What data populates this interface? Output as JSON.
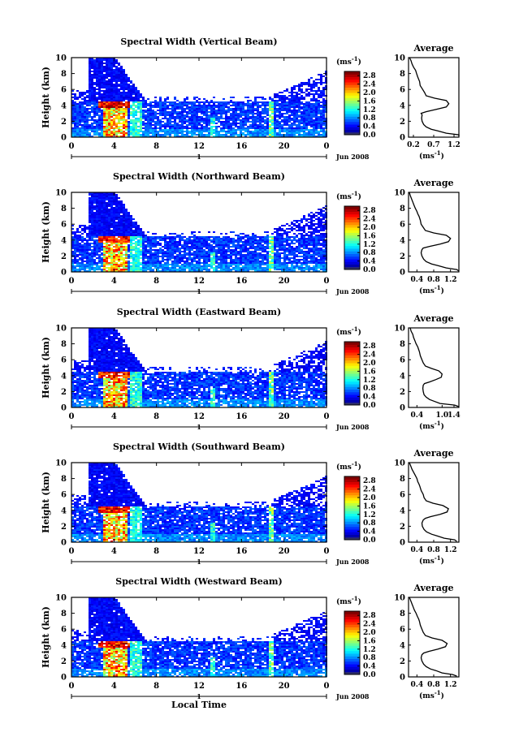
{
  "figure": {
    "common": {
      "ylabel": "Height (km)",
      "xlabel": "Local Time",
      "date_label": "Jun 2008",
      "day_label": "1",
      "unit_label": "(ms",
      "unit_exp": "-1",
      "unit_close": ")",
      "avg_title": "Average"
    }
  },
  "chart_data": [
    {
      "type": "heatmap",
      "title": "Spectral Width (Vertical Beam)",
      "ylabel": "Height (km)",
      "xticks": [
        "0",
        "4",
        "8",
        "12",
        "16",
        "20",
        "0"
      ],
      "yticks": [
        "0",
        "2",
        "4",
        "6",
        "8",
        "10"
      ],
      "xlim": [
        0,
        24
      ],
      "ylim": [
        0,
        10
      ],
      "colorbar": {
        "ticks": [
          "0.0",
          "0.4",
          "0.8",
          "1.2",
          "1.6",
          "2.0",
          "2.4",
          "2.8"
        ],
        "range": [
          0,
          3.0
        ]
      },
      "average": {
        "title": "Average",
        "xticks": [
          "0.2",
          "0.7",
          "1.2"
        ],
        "xlim": [
          0.2,
          1.2
        ],
        "x": [
          1.25,
          1.2,
          0.95,
          0.78,
          0.65,
          0.55,
          0.5,
          0.47,
          0.46,
          0.47,
          0.45,
          0.55,
          0.75,
          0.95,
          1.0,
          0.95,
          0.72,
          0.55,
          0.52,
          0.48,
          0.43,
          0.42,
          0.4,
          0.38,
          0.36,
          0.34,
          0.3,
          0.27,
          0.25,
          0.22
        ],
        "y": [
          0.1,
          0.3,
          0.5,
          0.8,
          1.0,
          1.3,
          1.6,
          2.0,
          2.4,
          2.8,
          3.0,
          3.2,
          3.5,
          3.8,
          4.2,
          4.6,
          4.9,
          5.2,
          5.6,
          6.0,
          6.5,
          7.0,
          7.3,
          7.6,
          8.0,
          8.4,
          8.8,
          9.2,
          9.6,
          10.0
        ]
      }
    },
    {
      "type": "heatmap",
      "title": "Spectral Width (Northward Beam)",
      "ylabel": "Height (km)",
      "xticks": [
        "0",
        "4",
        "8",
        "12",
        "16",
        "20",
        "0"
      ],
      "yticks": [
        "0",
        "2",
        "4",
        "6",
        "8",
        "10"
      ],
      "xlim": [
        0,
        24
      ],
      "ylim": [
        0,
        10
      ],
      "colorbar": {
        "ticks": [
          "0.0",
          "0.4",
          "0.8",
          "1.2",
          "1.6",
          "2.0",
          "2.4",
          "2.8"
        ],
        "range": [
          0,
          3.0
        ]
      },
      "average": {
        "title": "Average",
        "xticks": [
          "0.4",
          "0.8",
          "1.2"
        ],
        "xlim": [
          0.2,
          1.4
        ],
        "x": [
          1.4,
          1.35,
          1.1,
          0.9,
          0.75,
          0.62,
          0.56,
          0.52,
          0.5,
          0.52,
          0.55,
          0.7,
          0.95,
          1.15,
          1.2,
          1.1,
          0.8,
          0.6,
          0.55,
          0.5,
          0.48,
          0.45,
          0.42,
          0.4,
          0.36,
          0.33,
          0.3,
          0.27,
          0.24,
          0.22
        ],
        "y": [
          0.1,
          0.3,
          0.5,
          0.8,
          1.0,
          1.3,
          1.6,
          2.0,
          2.4,
          2.8,
          3.0,
          3.2,
          3.5,
          3.8,
          4.2,
          4.6,
          4.9,
          5.2,
          5.6,
          6.0,
          6.5,
          7.0,
          7.3,
          7.6,
          8.0,
          8.4,
          8.8,
          9.2,
          9.6,
          10.0
        ]
      }
    },
    {
      "type": "heatmap",
      "title": "Spectral Width (Eastward Beam)",
      "ylabel": "Height (km)",
      "xticks": [
        "0",
        "4",
        "8",
        "12",
        "16",
        "20",
        "0"
      ],
      "yticks": [
        "0",
        "2",
        "4",
        "6",
        "8",
        "10"
      ],
      "xlim": [
        0,
        24
      ],
      "ylim": [
        0,
        10
      ],
      "colorbar": {
        "ticks": [
          "0.0",
          "0.4",
          "0.8",
          "1.2",
          "1.6",
          "2.0",
          "2.4",
          "2.8"
        ],
        "range": [
          0,
          3.0
        ]
      },
      "average": {
        "title": "Average",
        "xticks": [
          "0.4",
          "1.0",
          "1.4"
        ],
        "xlim": [
          0.2,
          1.4
        ],
        "x": [
          1.4,
          1.3,
          0.95,
          0.8,
          0.7,
          0.62,
          0.57,
          0.55,
          0.54,
          0.55,
          0.58,
          0.7,
          0.85,
          0.98,
          1.0,
          0.92,
          0.75,
          0.6,
          0.55,
          0.52,
          0.48,
          0.46,
          0.44,
          0.42,
          0.38,
          0.35,
          0.32,
          0.3,
          0.26,
          0.24
        ],
        "y": [
          0.1,
          0.3,
          0.5,
          0.8,
          1.0,
          1.3,
          1.6,
          2.0,
          2.4,
          2.8,
          3.0,
          3.2,
          3.5,
          3.8,
          4.2,
          4.6,
          4.9,
          5.2,
          5.6,
          6.0,
          6.5,
          7.0,
          7.3,
          7.6,
          8.0,
          8.4,
          8.8,
          9.2,
          9.6,
          10.0
        ]
      }
    },
    {
      "type": "heatmap",
      "title": "Spectral Width (Southward Beam)",
      "ylabel": "Height (km)",
      "xticks": [
        "0",
        "4",
        "8",
        "12",
        "16",
        "20",
        "0"
      ],
      "yticks": [
        "0",
        "2",
        "4",
        "6",
        "8",
        "10"
      ],
      "xlim": [
        0,
        24
      ],
      "ylim": [
        0,
        10
      ],
      "colorbar": {
        "ticks": [
          "0.0",
          "0.4",
          "0.8",
          "1.2",
          "1.6",
          "2.0",
          "2.4",
          "2.8"
        ],
        "range": [
          0,
          3.0
        ]
      },
      "average": {
        "title": "Average",
        "xticks": [
          "0.4",
          "0.8",
          "1.2"
        ],
        "xlim": [
          0.2,
          1.4
        ],
        "x": [
          1.35,
          1.3,
          1.05,
          0.88,
          0.75,
          0.63,
          0.57,
          0.53,
          0.52,
          0.55,
          0.6,
          0.72,
          0.95,
          1.12,
          1.15,
          1.02,
          0.78,
          0.62,
          0.57,
          0.55,
          0.5,
          0.47,
          0.45,
          0.42,
          0.4,
          0.36,
          0.32,
          0.28,
          0.25,
          0.22
        ],
        "y": [
          0.1,
          0.3,
          0.5,
          0.8,
          1.0,
          1.3,
          1.6,
          2.0,
          2.4,
          2.8,
          3.0,
          3.2,
          3.5,
          3.8,
          4.2,
          4.6,
          4.9,
          5.2,
          5.6,
          6.0,
          6.5,
          7.0,
          7.3,
          7.6,
          8.0,
          8.4,
          8.8,
          9.2,
          9.6,
          10.0
        ]
      }
    },
    {
      "type": "heatmap",
      "title": "Spectral Width (Westward Beam)",
      "ylabel": "Height (km)",
      "xlabel": "Local Time",
      "xticks": [
        "0",
        "4",
        "8",
        "12",
        "16",
        "20",
        "0"
      ],
      "yticks": [
        "0",
        "2",
        "4",
        "6",
        "8",
        "10"
      ],
      "xlim": [
        0,
        24
      ],
      "ylim": [
        0,
        10
      ],
      "colorbar": {
        "ticks": [
          "0.0",
          "0.4",
          "0.8",
          "1.2",
          "1.6",
          "2.0",
          "2.4",
          "2.8"
        ],
        "range": [
          0,
          3.0
        ]
      },
      "average": {
        "title": "Average",
        "xticks": [
          "0.4",
          "0.8",
          "1.2"
        ],
        "xlim": [
          0.2,
          1.4
        ],
        "x": [
          1.35,
          1.25,
          1.0,
          0.85,
          0.72,
          0.62,
          0.56,
          0.52,
          0.5,
          0.52,
          0.56,
          0.68,
          0.9,
          1.08,
          1.12,
          1.0,
          0.76,
          0.6,
          0.55,
          0.52,
          0.48,
          0.46,
          0.44,
          0.41,
          0.38,
          0.34,
          0.31,
          0.28,
          0.25,
          0.22
        ],
        "y": [
          0.1,
          0.3,
          0.5,
          0.8,
          1.0,
          1.3,
          1.6,
          2.0,
          2.4,
          2.8,
          3.0,
          3.2,
          3.5,
          3.8,
          4.2,
          4.6,
          4.9,
          5.2,
          5.6,
          6.0,
          6.5,
          7.0,
          7.3,
          7.6,
          8.0,
          8.4,
          8.8,
          9.2,
          9.6,
          10.0
        ]
      }
    }
  ]
}
